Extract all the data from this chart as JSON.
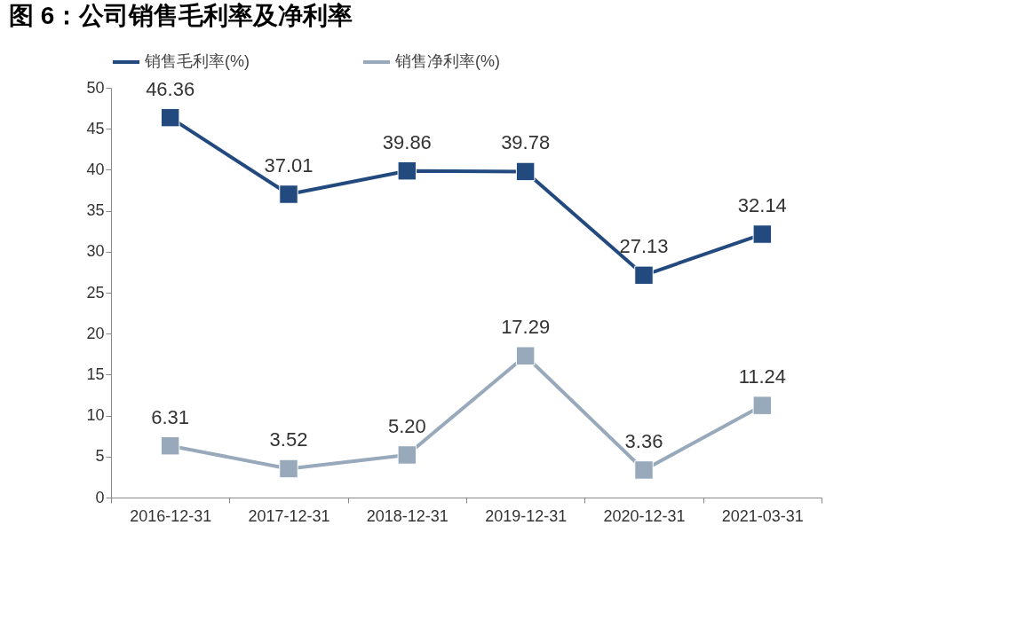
{
  "chart_data": {
    "type": "line",
    "title": "图 6：公司销售毛利率及净利率",
    "categories": [
      "2016-12-31",
      "2017-12-31",
      "2018-12-31",
      "2019-12-31",
      "2020-12-31",
      "2021-03-31"
    ],
    "series": [
      {
        "name": "销售毛利率(%)",
        "color": "#234a7e",
        "values": [
          46.36,
          37.01,
          39.86,
          39.78,
          27.13,
          32.14
        ],
        "value_labels": [
          "46.36",
          "37.01",
          "39.86",
          "39.78",
          "27.13",
          "32.14"
        ]
      },
      {
        "name": "销售净利率(%)",
        "color": "#97a9bb",
        "values": [
          6.31,
          3.52,
          5.2,
          17.29,
          3.36,
          11.24
        ],
        "value_labels": [
          "6.31",
          "3.52",
          "5.20",
          "17.29",
          "3.36",
          "11.24"
        ]
      }
    ],
    "ylim": [
      0,
      50
    ],
    "yticks": [
      0,
      5,
      10,
      15,
      20,
      25,
      30,
      35,
      40,
      45,
      50
    ],
    "marker": "square",
    "legend": "top",
    "grid": false,
    "line_style": "solid"
  }
}
